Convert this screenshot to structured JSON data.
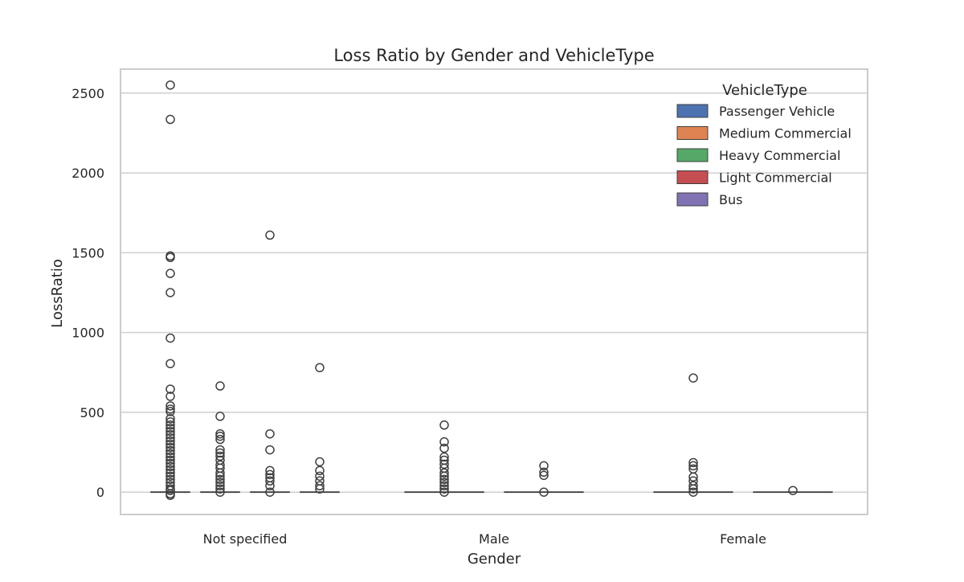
{
  "chart_data": {
    "type": "box",
    "title": "Loss Ratio by Gender and VehicleType",
    "xlabel": "Gender",
    "ylabel": "LossRatio",
    "categories": [
      "Not specified",
      "Male",
      "Female"
    ],
    "ylim": [
      -140,
      2650
    ],
    "yticks": [
      0,
      500,
      1000,
      1500,
      2000,
      2500
    ],
    "grid": true,
    "legend": {
      "title": "VehicleType",
      "placement": "top-right",
      "entries": [
        {
          "label": "Passenger Vehicle",
          "color": "#4c72b0"
        },
        {
          "label": "Medium Commercial",
          "color": "#dd8452"
        },
        {
          "label": "Heavy Commercial",
          "color": "#55a868"
        },
        {
          "label": "Light Commercial",
          "color": "#c44e52"
        },
        {
          "label": "Bus",
          "color": "#8172b3"
        }
      ]
    },
    "groups": [
      {
        "category": "Not specified",
        "series": [
          {
            "name": "Passenger Vehicle",
            "median": 0,
            "outliers": [
              2550,
              2335,
              1480,
              1470,
              1370,
              1250,
              965,
              805,
              645,
              600,
              540,
              520,
              505,
              460,
              440,
              420,
              400,
              380,
              360,
              340,
              320,
              300,
              280,
              260,
              240,
              220,
              200,
              180,
              160,
              140,
              120,
              100,
              80,
              60,
              40,
              20,
              10,
              -10,
              -20
            ]
          },
          {
            "name": "Medium Commercial",
            "median": 0,
            "outliers": [
              665,
              475,
              365,
              350,
              330,
              265,
              245,
              225,
              200,
              170,
              150,
              120,
              100,
              80,
              60,
              40,
              20,
              0
            ]
          },
          {
            "name": "Heavy Commercial",
            "median": 0,
            "outliers": [
              1610,
              365,
              265,
              135,
              110,
              90,
              70,
              40,
              0
            ]
          },
          {
            "name": "Light Commercial",
            "median": 0,
            "outliers": [
              780,
              190,
              135,
              100,
              70,
              40,
              20
            ]
          }
        ]
      },
      {
        "category": "Male",
        "series": [
          {
            "name": "Passenger Vehicle",
            "median": 0,
            "outliers": [
              420,
              315,
              275,
              220,
              200,
              175,
              150,
              120,
              100,
              80,
              60,
              40,
              20,
              0
            ]
          },
          {
            "name": "Medium Commercial",
            "median": 0,
            "outliers": [
              165,
              125,
              105,
              0
            ]
          }
        ]
      },
      {
        "category": "Female",
        "series": [
          {
            "name": "Passenger Vehicle",
            "median": 0,
            "outliers": [
              715,
              185,
              165,
              145,
              95,
              70,
              40,
              20,
              0
            ]
          },
          {
            "name": "Medium Commercial",
            "median": 0,
            "outliers": [
              10
            ]
          }
        ]
      }
    ]
  }
}
